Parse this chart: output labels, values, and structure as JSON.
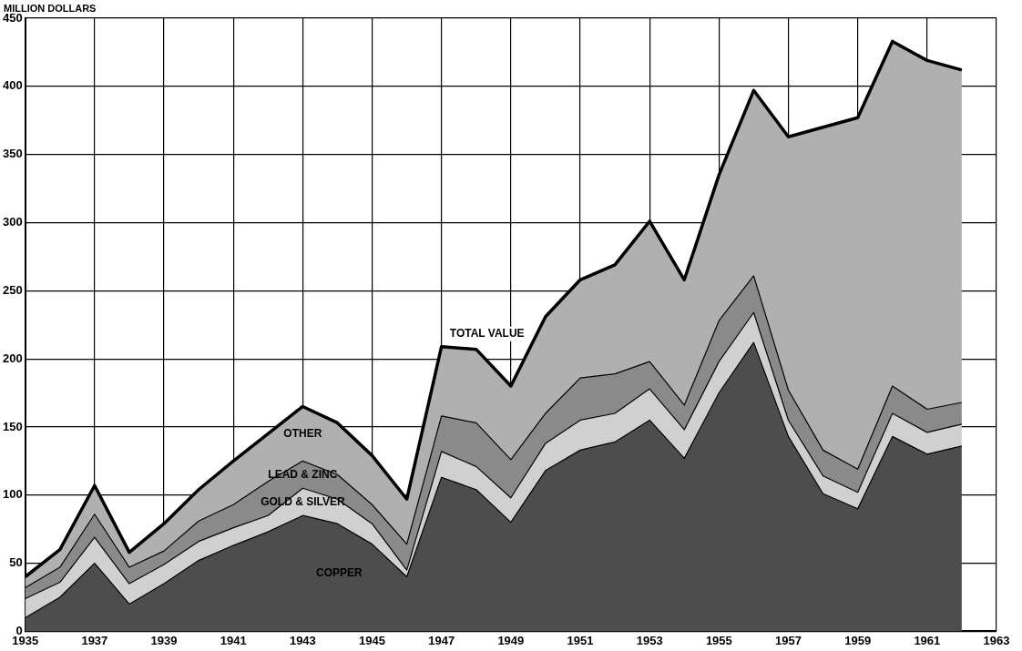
{
  "chart_data": {
    "type": "area",
    "ylabel": "MILLION DOLLARS",
    "stacked": true,
    "grid": true,
    "legend": false,
    "marker": "none",
    "x": [
      1935,
      1936,
      1937,
      1938,
      1939,
      1940,
      1941,
      1942,
      1943,
      1944,
      1945,
      1946,
      1947,
      1948,
      1949,
      1950,
      1951,
      1952,
      1953,
      1954,
      1955,
      1956,
      1957,
      1958,
      1959,
      1960,
      1961,
      1962
    ],
    "xlim": [
      1935,
      1963
    ],
    "xticks": [
      1935,
      1937,
      1939,
      1941,
      1943,
      1945,
      1947,
      1949,
      1951,
      1953,
      1955,
      1957,
      1959,
      1961,
      1963
    ],
    "ylim": [
      0,
      450
    ],
    "yticks": [
      0,
      50,
      100,
      150,
      200,
      250,
      300,
      350,
      400,
      450
    ],
    "series": [
      {
        "name": "COPPER",
        "color": "#4d4d4d",
        "values": [
          10,
          25,
          50,
          20,
          35,
          52,
          63,
          73,
          85,
          79,
          64,
          40,
          113,
          104,
          80,
          118,
          133,
          139,
          155,
          127,
          175,
          212,
          143,
          101,
          90,
          143,
          130,
          136
        ]
      },
      {
        "name": "GOLD & SILVER",
        "color": "#d0d0d0",
        "values": [
          14,
          11,
          19,
          15,
          14,
          14,
          13,
          12,
          20,
          18,
          15,
          5,
          19,
          17,
          18,
          20,
          22,
          21,
          23,
          21,
          23,
          22,
          12,
          13,
          12,
          17,
          16,
          16
        ]
      },
      {
        "name": "LEAD & ZINC",
        "color": "#8a8a8a",
        "values": [
          8,
          11,
          17,
          12,
          10,
          15,
          17,
          25,
          20,
          18,
          14,
          19,
          26,
          32,
          28,
          22,
          31,
          29,
          20,
          18,
          30,
          27,
          22,
          19,
          17,
          20,
          17,
          16
        ]
      },
      {
        "name": "OTHER",
        "color": "#b0b0b0",
        "values": [
          8,
          13,
          21,
          11,
          20,
          23,
          32,
          35,
          40,
          38,
          36,
          33,
          51,
          54,
          54,
          71,
          72,
          80,
          103,
          92,
          107,
          136,
          186,
          237,
          258,
          253,
          256,
          244
        ]
      }
    ],
    "annotations": [
      {
        "text": "TOTAL VALUE",
        "x": 1947,
        "y": 209
      }
    ]
  }
}
